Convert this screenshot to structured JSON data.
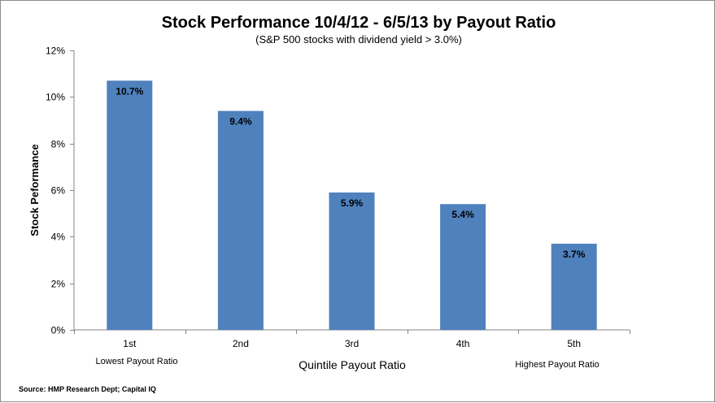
{
  "chart_data": {
    "type": "bar",
    "title": "Stock Performance 10/4/12 - 6/5/13 by Payout Ratio",
    "subtitle": "(S&P 500 stocks with dividend yield > 3.0%)",
    "xlabel": "Quintile Payout Ratio",
    "ylabel": "Stock Peformance",
    "categories": [
      "1st",
      "2nd",
      "3rd",
      "4th",
      "5th"
    ],
    "values": [
      10.7,
      9.4,
      5.9,
      5.4,
      3.7
    ],
    "data_labels": [
      "10.7%",
      "9.4%",
      "5.9%",
      "5.4%",
      "3.7%"
    ],
    "ylim": [
      0,
      12
    ],
    "yticks": [
      0,
      2,
      4,
      6,
      8,
      10,
      12
    ],
    "ytick_labels": [
      "0%",
      "2%",
      "4%",
      "6%",
      "8%",
      "10%",
      "12%"
    ],
    "grid": false,
    "legend": "none",
    "annotations": {
      "left": "Lowest Payout Ratio",
      "right": "Highest Payout Ratio"
    },
    "source": "Source: HMP Research Dept; Capital IQ",
    "bar_color": "#4f81bd"
  }
}
